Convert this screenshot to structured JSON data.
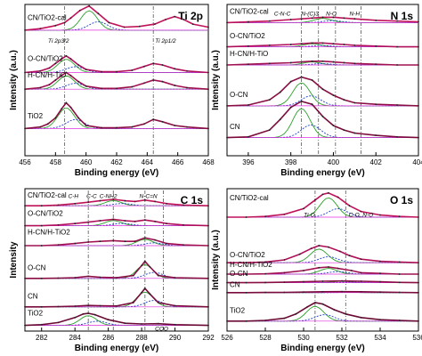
{
  "chart_data": [
    {
      "type": "line",
      "panel_title": "Ti 2p",
      "xlabel": "Binding energy (eV)",
      "ylabel": "Intensity (a.u.)",
      "xlim": [
        456,
        468
      ],
      "x_ticks": [
        "456",
        "458",
        "460",
        "462",
        "464",
        "466",
        "468"
      ],
      "grid": false,
      "series": [
        {
          "name": "CN/TiO2-cal",
          "x": [
            456,
            457,
            458,
            458.6,
            459,
            459.6,
            460.2,
            460.8,
            461.5,
            462.5,
            463.5,
            464.5,
            465.2,
            465.8,
            466.4,
            467,
            468
          ],
          "y": [
            0.83,
            0.84,
            0.86,
            0.88,
            0.91,
            0.96,
            0.99,
            0.94,
            0.88,
            0.85,
            0.855,
            0.87,
            0.9,
            0.92,
            0.9,
            0.87,
            0.85
          ]
        },
        {
          "name": "O-CN/TiO2",
          "x": [
            456,
            457,
            457.6,
            458,
            458.4,
            458.7,
            459,
            459.5,
            460,
            461,
            462,
            463,
            463.8,
            464.4,
            465,
            465.8,
            466.6,
            468
          ],
          "y": [
            0.55,
            0.56,
            0.58,
            0.61,
            0.64,
            0.66,
            0.64,
            0.6,
            0.57,
            0.555,
            0.555,
            0.565,
            0.59,
            0.61,
            0.6,
            0.575,
            0.56,
            0.55
          ]
        },
        {
          "name": "H-CN/H-TiO",
          "x": [
            456,
            457,
            457.6,
            458,
            458.4,
            458.7,
            459,
            459.5,
            460,
            461,
            462,
            463,
            463.8,
            464.4,
            465,
            465.8,
            466.6,
            468
          ],
          "y": [
            0.44,
            0.45,
            0.47,
            0.5,
            0.53,
            0.55,
            0.53,
            0.49,
            0.46,
            0.445,
            0.445,
            0.455,
            0.48,
            0.5,
            0.49,
            0.465,
            0.45,
            0.44
          ]
        },
        {
          "name": "TiO2",
          "x": [
            456,
            457,
            457.5,
            458,
            458.4,
            458.7,
            459,
            459.5,
            460,
            461,
            462,
            463,
            463.8,
            464.4,
            465,
            465.8,
            466.6,
            468
          ],
          "y": [
            0.18,
            0.19,
            0.21,
            0.25,
            0.31,
            0.35,
            0.32,
            0.25,
            0.2,
            0.185,
            0.185,
            0.19,
            0.21,
            0.24,
            0.225,
            0.2,
            0.19,
            0.18
          ]
        }
      ],
      "labels": [
        "CN/TiO2-cal",
        "O-CN/TiO2",
        "H-CN/H-TiO",
        "TiO2"
      ],
      "annotations": [
        "Ti 2p3/2",
        "Ti 2p1/2"
      ]
    },
    {
      "type": "line",
      "panel_title": "N 1s",
      "xlabel": "Binding energy (eV)",
      "ylabel": "Intensity (a.u.)",
      "xlim": [
        395,
        404
      ],
      "x_ticks": [
        "396",
        "398",
        "400",
        "402",
        "404"
      ],
      "grid": false,
      "series": [
        {
          "name": "CN/TiO2-cal",
          "x": [
            395,
            396,
            397,
            398,
            398.5,
            399,
            399.5,
            400,
            400.5,
            401,
            402,
            403,
            404
          ],
          "y": [
            0.88,
            0.885,
            0.89,
            0.9,
            0.905,
            0.91,
            0.915,
            0.915,
            0.91,
            0.905,
            0.895,
            0.89,
            0.885
          ]
        },
        {
          "name": "O-CN/TiO2",
          "x": [
            395,
            396,
            397,
            398,
            398.5,
            399,
            399.5,
            400,
            400.5,
            401,
            402,
            403,
            404
          ],
          "y": [
            0.72,
            0.725,
            0.73,
            0.735,
            0.74,
            0.745,
            0.745,
            0.74,
            0.735,
            0.73,
            0.725,
            0.72,
            0.72
          ]
        },
        {
          "name": "H-CN/H-TiO",
          "x": [
            395,
            396,
            397,
            398,
            398.5,
            399,
            399.5,
            400,
            400.5,
            401,
            402,
            403,
            404
          ],
          "y": [
            0.6,
            0.605,
            0.61,
            0.615,
            0.62,
            0.625,
            0.625,
            0.62,
            0.615,
            0.61,
            0.605,
            0.6,
            0.6
          ]
        },
        {
          "name": "O-CN",
          "x": [
            395,
            396,
            397,
            397.5,
            398,
            398.5,
            399,
            399.5,
            400,
            400.5,
            401,
            402,
            403,
            404
          ],
          "y": [
            0.33,
            0.335,
            0.37,
            0.42,
            0.49,
            0.52,
            0.5,
            0.44,
            0.4,
            0.37,
            0.35,
            0.34,
            0.335,
            0.33
          ]
        },
        {
          "name": "CN",
          "x": [
            395,
            396,
            397,
            397.5,
            398,
            398.5,
            399,
            399.5,
            400,
            400.5,
            401,
            402,
            403,
            404
          ],
          "y": [
            0.12,
            0.125,
            0.17,
            0.24,
            0.32,
            0.36,
            0.34,
            0.26,
            0.2,
            0.17,
            0.15,
            0.135,
            0.125,
            0.12
          ]
        }
      ],
      "labels": [
        "CN/TiO2-cal",
        "O-CN/TiO2",
        "H-CN/H-TiO",
        "O-CN",
        "CN"
      ],
      "annotations": [
        "C-N-C",
        "N-(C)3",
        "N-O",
        "N-H"
      ]
    },
    {
      "type": "line",
      "panel_title": "C 1s",
      "xlabel": "Binding energy (eV)",
      "ylabel": "Intensity",
      "xlim": [
        281,
        292
      ],
      "x_ticks": [
        "282",
        "284",
        "286",
        "288",
        "290",
        "292"
      ],
      "grid": false,
      "series": [
        {
          "name": "CN/TiO2-cal",
          "x": [
            281,
            282,
            283,
            284,
            284.8,
            285.5,
            286.3,
            287,
            287.6,
            288.2,
            288.8,
            289.5,
            290.5,
            292
          ],
          "y": [
            0.88,
            0.88,
            0.885,
            0.895,
            0.905,
            0.915,
            0.925,
            0.915,
            0.91,
            0.92,
            0.91,
            0.895,
            0.885,
            0.88
          ]
        },
        {
          "name": "O-CN/TiO2",
          "x": [
            281,
            282,
            283,
            284,
            284.8,
            285.5,
            286.3,
            287,
            287.6,
            288.2,
            288.8,
            289.5,
            290.5,
            292
          ],
          "y": [
            0.74,
            0.74,
            0.745,
            0.755,
            0.765,
            0.775,
            0.785,
            0.775,
            0.77,
            0.78,
            0.77,
            0.755,
            0.745,
            0.74
          ]
        },
        {
          "name": "H-CN/H-TiO2",
          "x": [
            281,
            282,
            283,
            284,
            284.8,
            285.5,
            286.3,
            287,
            287.6,
            288.2,
            288.8,
            289.5,
            290.5,
            292
          ],
          "y": [
            0.6,
            0.6,
            0.605,
            0.615,
            0.625,
            0.63,
            0.635,
            0.63,
            0.63,
            0.655,
            0.64,
            0.615,
            0.605,
            0.6
          ]
        },
        {
          "name": "O-CN",
          "x": [
            281,
            282,
            283,
            284,
            284.8,
            285.5,
            286.5,
            287.5,
            288,
            288.2,
            288.5,
            289,
            290,
            292
          ],
          "y": [
            0.37,
            0.37,
            0.372,
            0.375,
            0.385,
            0.378,
            0.375,
            0.39,
            0.46,
            0.49,
            0.45,
            0.39,
            0.375,
            0.37
          ]
        },
        {
          "name": "CN",
          "x": [
            281,
            282,
            283,
            284,
            284.8,
            285.5,
            286.5,
            287.5,
            288,
            288.2,
            288.5,
            289,
            290,
            292
          ],
          "y": [
            0.17,
            0.17,
            0.172,
            0.175,
            0.18,
            0.178,
            0.176,
            0.2,
            0.27,
            0.3,
            0.26,
            0.2,
            0.178,
            0.17
          ]
        },
        {
          "name": "TiO2",
          "x": [
            281,
            282,
            283,
            284,
            284.5,
            284.8,
            285.2,
            286,
            287,
            288,
            289,
            290,
            292
          ],
          "y": [
            0.04,
            0.045,
            0.06,
            0.095,
            0.12,
            0.125,
            0.115,
            0.08,
            0.055,
            0.05,
            0.052,
            0.045,
            0.04
          ]
        }
      ],
      "labels": [
        "CN/TiO2-cal",
        "O-CN/TiO2",
        "H-CN/H-TiO2",
        "O-CN",
        "CN",
        "TiO2"
      ],
      "annotations": [
        "C-H",
        "C-C",
        "C-NH2",
        "N-C=N",
        "COO"
      ]
    },
    {
      "type": "line",
      "panel_title": "O 1s",
      "xlabel": "Binding energy (eV)",
      "ylabel": "Intensity (a.u.)",
      "xlim": [
        526,
        536
      ],
      "x_ticks": [
        "526",
        "528",
        "530",
        "532",
        "534",
        "536"
      ],
      "grid": false,
      "series": [
        {
          "name": "CN/TiO2-cal",
          "x": [
            526,
            527,
            528,
            529,
            530,
            530.6,
            531,
            531.3,
            531.8,
            532.4,
            533,
            534,
            535,
            536
          ],
          "y": [
            0.8,
            0.8,
            0.805,
            0.82,
            0.86,
            0.92,
            0.96,
            0.97,
            0.94,
            0.88,
            0.84,
            0.815,
            0.805,
            0.8
          ]
        },
        {
          "name": "O-CN/TiO2",
          "x": [
            526,
            527,
            528,
            529,
            529.8,
            530.4,
            530.8,
            531.3,
            531.9,
            532.4,
            533,
            534,
            535,
            536
          ],
          "y": [
            0.48,
            0.48,
            0.485,
            0.5,
            0.54,
            0.58,
            0.6,
            0.59,
            0.56,
            0.53,
            0.505,
            0.49,
            0.485,
            0.48
          ]
        },
        {
          "name": "H-CN/H-TiO2",
          "x": [
            526,
            527,
            528,
            529,
            530,
            530.8,
            531.3,
            531.8,
            532.5,
            533,
            534,
            535,
            536
          ],
          "y": [
            0.4,
            0.4,
            0.402,
            0.41,
            0.425,
            0.445,
            0.45,
            0.44,
            0.425,
            0.41,
            0.405,
            0.4,
            0.4
          ]
        },
        {
          "name": "O-CN",
          "x": [
            526,
            527,
            528,
            529,
            530,
            531,
            532,
            533,
            534,
            535,
            536
          ],
          "y": [
            0.34,
            0.34,
            0.341,
            0.343,
            0.346,
            0.35,
            0.352,
            0.35,
            0.346,
            0.342,
            0.34
          ]
        },
        {
          "name": "CN",
          "x": [
            526,
            527,
            528,
            529,
            530,
            531,
            532,
            533,
            534,
            535,
            536
          ],
          "y": [
            0.27,
            0.27,
            0.271,
            0.272,
            0.274,
            0.276,
            0.277,
            0.276,
            0.274,
            0.272,
            0.27
          ]
        },
        {
          "name": "TiO2",
          "x": [
            526,
            527,
            528,
            529,
            529.6,
            530.2,
            530.6,
            531,
            531.6,
            532.2,
            533,
            534,
            535,
            536
          ],
          "y": [
            0.07,
            0.07,
            0.075,
            0.09,
            0.12,
            0.17,
            0.2,
            0.19,
            0.15,
            0.12,
            0.095,
            0.08,
            0.075,
            0.07
          ]
        }
      ],
      "labels": [
        "CN/TiO2-cal",
        "O-CN/TiO2",
        "H-CN/H-TiO2",
        "O-CN",
        "CN",
        "TiO2"
      ],
      "annotations": [
        "Ti-O",
        "C-O, N-O"
      ]
    }
  ]
}
